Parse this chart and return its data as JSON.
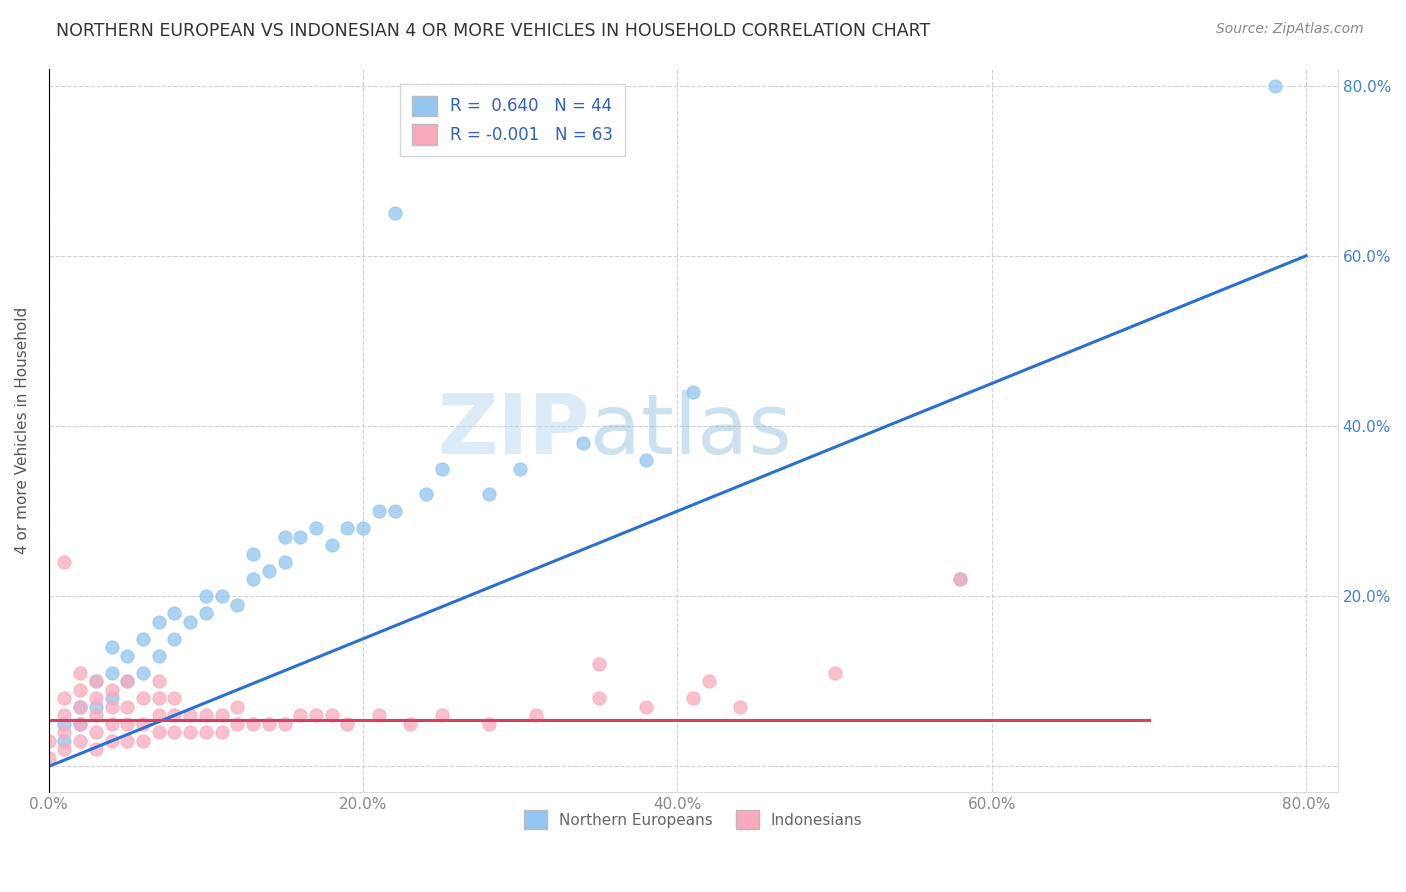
{
  "title": "NORTHERN EUROPEAN VS INDONESIAN 4 OR MORE VEHICLES IN HOUSEHOLD CORRELATION CHART",
  "source": "Source: ZipAtlas.com",
  "ylabel": "4 or more Vehicles in Household",
  "xlim": [
    0.0,
    0.82
  ],
  "ylim": [
    -0.03,
    0.82
  ],
  "xticks": [
    0.0,
    0.2,
    0.4,
    0.6,
    0.8
  ],
  "yticks": [
    0.0,
    0.2,
    0.4,
    0.6,
    0.8
  ],
  "xtick_labels": [
    "0.0%",
    "20.0%",
    "40.0%",
    "60.0%",
    "80.0%"
  ],
  "ytick_labels_right": [
    "",
    "20.0%",
    "40.0%",
    "60.0%",
    "80.0%"
  ],
  "blue_color": "#92C5F0",
  "pink_color": "#F9AABC",
  "blue_line_color": "#2B6FD4",
  "pink_line_color": "#D44060",
  "right_tick_color": "#4080D0",
  "legend_text_color": "#3060C0",
  "R_blue": 0.64,
  "N_blue": 44,
  "R_pink": -0.001,
  "N_pink": 63,
  "watermark_zip": "ZIP",
  "watermark_atlas": "atlas",
  "grid_color": "#CCCCCC",
  "background_color": "#FFFFFF",
  "blue_scatter_x": [
    0.01,
    0.02,
    0.02,
    0.03,
    0.03,
    0.04,
    0.04,
    0.04,
    0.05,
    0.05,
    0.06,
    0.06,
    0.07,
    0.07,
    0.08,
    0.08,
    0.09,
    0.1,
    0.1,
    0.11,
    0.12,
    0.13,
    0.13,
    0.14,
    0.15,
    0.15,
    0.16,
    0.17,
    0.18,
    0.19,
    0.2,
    0.21,
    0.22,
    0.24,
    0.25,
    0.28,
    0.3,
    0.34,
    0.38,
    0.41,
    0.58,
    0.22,
    0.78,
    0.01
  ],
  "blue_scatter_y": [
    0.03,
    0.05,
    0.07,
    0.07,
    0.1,
    0.08,
    0.11,
    0.14,
    0.1,
    0.13,
    0.11,
    0.15,
    0.13,
    0.17,
    0.15,
    0.18,
    0.17,
    0.18,
    0.2,
    0.2,
    0.19,
    0.22,
    0.25,
    0.23,
    0.24,
    0.27,
    0.27,
    0.28,
    0.26,
    0.28,
    0.28,
    0.3,
    0.3,
    0.32,
    0.35,
    0.32,
    0.35,
    0.38,
    0.36,
    0.44,
    0.22,
    0.65,
    0.8,
    0.05
  ],
  "pink_scatter_x": [
    0.0,
    0.0,
    0.01,
    0.01,
    0.01,
    0.01,
    0.02,
    0.02,
    0.02,
    0.02,
    0.02,
    0.03,
    0.03,
    0.03,
    0.03,
    0.03,
    0.04,
    0.04,
    0.04,
    0.04,
    0.05,
    0.05,
    0.05,
    0.05,
    0.06,
    0.06,
    0.06,
    0.07,
    0.07,
    0.07,
    0.07,
    0.08,
    0.08,
    0.08,
    0.09,
    0.09,
    0.1,
    0.1,
    0.11,
    0.11,
    0.12,
    0.12,
    0.13,
    0.14,
    0.15,
    0.16,
    0.17,
    0.18,
    0.19,
    0.21,
    0.23,
    0.25,
    0.28,
    0.31,
    0.35,
    0.38,
    0.41,
    0.44,
    0.58,
    0.35,
    0.5,
    0.42,
    0.01
  ],
  "pink_scatter_y": [
    0.01,
    0.03,
    0.02,
    0.04,
    0.06,
    0.08,
    0.03,
    0.05,
    0.07,
    0.09,
    0.11,
    0.02,
    0.04,
    0.06,
    0.08,
    0.1,
    0.03,
    0.05,
    0.07,
    0.09,
    0.03,
    0.05,
    0.07,
    0.1,
    0.03,
    0.05,
    0.08,
    0.04,
    0.06,
    0.08,
    0.1,
    0.04,
    0.06,
    0.08,
    0.04,
    0.06,
    0.04,
    0.06,
    0.04,
    0.06,
    0.05,
    0.07,
    0.05,
    0.05,
    0.05,
    0.06,
    0.06,
    0.06,
    0.05,
    0.06,
    0.05,
    0.06,
    0.05,
    0.06,
    0.08,
    0.07,
    0.08,
    0.07,
    0.22,
    0.12,
    0.11,
    0.1,
    0.24
  ],
  "blue_line_x0": 0.0,
  "blue_line_y0": 0.0,
  "blue_line_x1": 0.8,
  "blue_line_y1": 0.6,
  "pink_line_x0": 0.0,
  "pink_line_y0": 0.055,
  "pink_line_x1": 0.7,
  "pink_line_y1": 0.055
}
